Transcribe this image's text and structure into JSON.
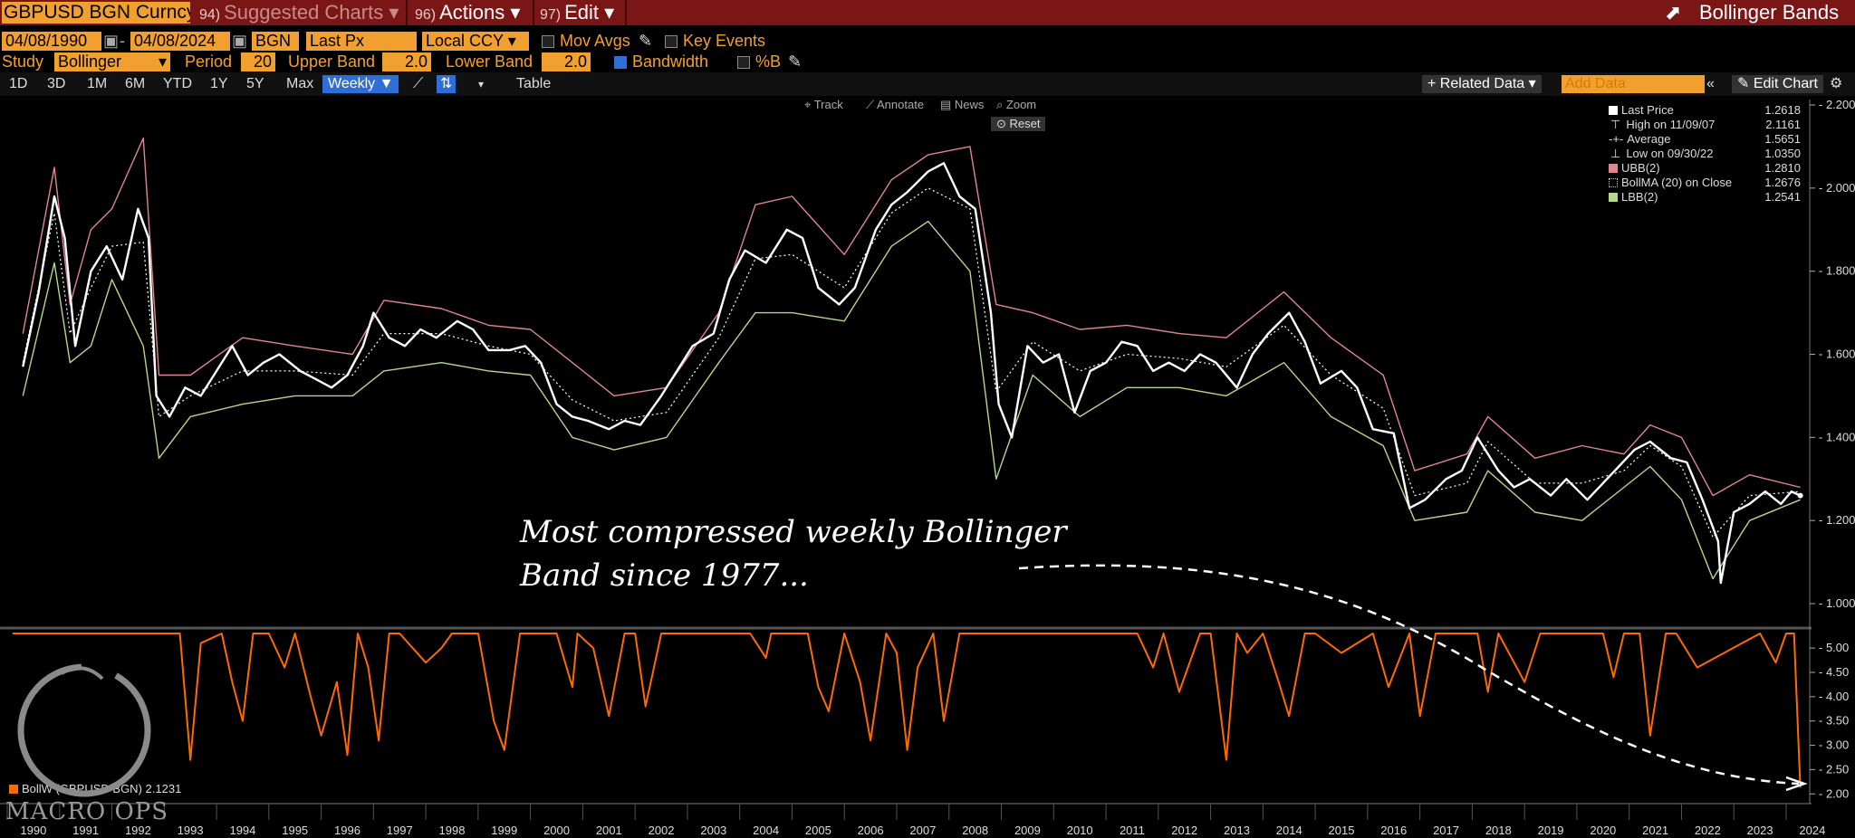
{
  "toolbar": {
    "ticker": "GBPUSD BGN Curncy",
    "suggested_num": "94)",
    "suggested": "Suggested Charts",
    "actions_num": "96)",
    "actions": "Actions",
    "edit_num": "97)",
    "edit": "Edit",
    "study_title": "Bollinger Bands"
  },
  "settings": {
    "start_date": "04/08/1990",
    "end_date": "04/08/2024",
    "source": "BGN",
    "field": "Last Px",
    "currency": "Local CCY",
    "mov_avgs": "Mov Avgs",
    "key_events": "Key Events",
    "study_label": "Study",
    "study": "Bollinger",
    "period_label": "Period",
    "period": "20",
    "upper_label": "Upper Band",
    "upper": "2.0",
    "lower_label": "Lower Band",
    "lower": "2.0",
    "bandwidth": "Bandwidth",
    "pctb": "%B"
  },
  "ranges": [
    "1D",
    "3D",
    "1M",
    "6M",
    "YTD",
    "1Y",
    "5Y",
    "Max"
  ],
  "frequency": "Weekly ▼",
  "table": "Table",
  "right_tools": {
    "related": "+ Related Data ▾",
    "add_data": "Add Data",
    "edit_chart": "Edit Chart"
  },
  "chart_tools": {
    "track": "Track",
    "annotate": "Annotate",
    "news": "News",
    "zoom": "Zoom",
    "reset": "Reset"
  },
  "legend": [
    {
      "label": "Last Price",
      "value": "1.2618",
      "color": "#ffffff"
    },
    {
      "label": "High on 11/09/07",
      "value": "2.1161",
      "color": ""
    },
    {
      "label": "Average",
      "value": "1.5651",
      "color": ""
    },
    {
      "label": "Low on 09/30/22",
      "value": "1.0350",
      "color": ""
    },
    {
      "label": "UBB(2)",
      "value": "1.2810",
      "color": "#e0868f"
    },
    {
      "label": "BollMA (20)  on Close",
      "value": "1.2676",
      "color": ""
    },
    {
      "label": "LBB(2)",
      "value": "1.2541",
      "color": "#b7d88a"
    }
  ],
  "lower_legend": {
    "label": "BollW (GBPUSD BGN)",
    "value": "2.1231"
  },
  "annotation": {
    "line1": "Most compressed weekly Bollinger",
    "line2": "Band since 1977..."
  },
  "watermark": "MACRO OPS",
  "chart_data": [
    {
      "type": "line",
      "series": [
        {
          "name": "Last Price",
          "color": "#ffffff",
          "x": [
            1990.3,
            1990.6,
            1990.9,
            1991.1,
            1991.3,
            1991.6,
            1991.9,
            1992.2,
            1992.5,
            1992.7,
            1992.85,
            1993.1,
            1993.4,
            1993.7,
            1994.0,
            1994.3,
            1994.6,
            1994.9,
            1995.2,
            1995.6,
            1995.9,
            1996.2,
            1996.5,
            1996.8,
            1997.0,
            1997.3,
            1997.6,
            1997.9,
            1998.2,
            1998.6,
            1998.9,
            1999.2,
            1999.6,
            1999.9,
            2000.2,
            2000.5,
            2000.8,
            2001.1,
            2001.5,
            2001.8,
            2002.1,
            2002.5,
            2002.8,
            2003.1,
            2003.5,
            2003.8,
            2004.1,
            2004.5,
            2004.9,
            2005.2,
            2005.5,
            2005.9,
            2006.2,
            2006.6,
            2006.9,
            2007.2,
            2007.6,
            2007.9,
            2008.2,
            2008.5,
            2008.8,
            2008.95,
            2009.2,
            2009.5,
            2009.8,
            2010.1,
            2010.4,
            2010.7,
            2011.0,
            2011.3,
            2011.6,
            2011.9,
            2012.2,
            2012.5,
            2012.8,
            2013.1,
            2013.5,
            2013.8,
            2014.1,
            2014.5,
            2014.8,
            2015.1,
            2015.5,
            2015.8,
            2016.1,
            2016.5,
            2016.8,
            2017.1,
            2017.5,
            2017.8,
            2018.1,
            2018.5,
            2018.8,
            2019.1,
            2019.5,
            2019.8,
            2020.2,
            2020.5,
            2020.8,
            2021.1,
            2021.4,
            2021.8,
            2022.1,
            2022.4,
            2022.7,
            2022.75,
            2023.0,
            2023.3,
            2023.6,
            2023.9,
            2024.1,
            2024.27
          ],
          "y": [
            1.57,
            1.75,
            1.98,
            1.88,
            1.62,
            1.8,
            1.86,
            1.78,
            1.95,
            1.88,
            1.5,
            1.45,
            1.52,
            1.5,
            1.56,
            1.62,
            1.55,
            1.58,
            1.6,
            1.56,
            1.54,
            1.52,
            1.55,
            1.62,
            1.7,
            1.64,
            1.62,
            1.66,
            1.64,
            1.68,
            1.66,
            1.61,
            1.61,
            1.62,
            1.58,
            1.48,
            1.45,
            1.44,
            1.42,
            1.44,
            1.43,
            1.5,
            1.56,
            1.62,
            1.65,
            1.78,
            1.85,
            1.82,
            1.9,
            1.88,
            1.76,
            1.72,
            1.76,
            1.9,
            1.96,
            1.99,
            2.04,
            2.06,
            1.98,
            1.95,
            1.7,
            1.48,
            1.4,
            1.62,
            1.58,
            1.6,
            1.46,
            1.56,
            1.58,
            1.63,
            1.62,
            1.56,
            1.58,
            1.56,
            1.6,
            1.58,
            1.52,
            1.6,
            1.65,
            1.7,
            1.63,
            1.53,
            1.56,
            1.52,
            1.42,
            1.41,
            1.23,
            1.25,
            1.3,
            1.32,
            1.4,
            1.32,
            1.28,
            1.3,
            1.26,
            1.3,
            1.25,
            1.29,
            1.33,
            1.37,
            1.39,
            1.35,
            1.34,
            1.25,
            1.15,
            1.05,
            1.22,
            1.24,
            1.27,
            1.24,
            1.27,
            1.26
          ]
        },
        {
          "name": "UBB(2)",
          "color": "#e0868f",
          "x": [
            1990.3,
            1990.9,
            1991.2,
            1991.6,
            1992.0,
            1992.6,
            1992.9,
            1993.5,
            1994.5,
            1995.5,
            1996.6,
            1997.2,
            1998.3,
            1999.2,
            2000.0,
            2000.8,
            2001.6,
            2002.6,
            2003.6,
            2004.3,
            2005.0,
            2006.0,
            2006.9,
            2007.6,
            2008.4,
            2008.9,
            2009.6,
            2010.5,
            2011.4,
            2012.4,
            2013.3,
            2014.4,
            2015.3,
            2016.3,
            2016.9,
            2017.9,
            2018.3,
            2019.2,
            2020.1,
            2020.9,
            2021.4,
            2022.0,
            2022.6,
            2023.3,
            2024.27
          ],
          "y": [
            1.65,
            2.05,
            1.72,
            1.9,
            1.95,
            2.12,
            1.55,
            1.55,
            1.64,
            1.62,
            1.6,
            1.73,
            1.71,
            1.67,
            1.66,
            1.58,
            1.5,
            1.52,
            1.7,
            1.96,
            1.98,
            1.84,
            2.02,
            2.08,
            2.1,
            1.72,
            1.7,
            1.66,
            1.67,
            1.65,
            1.64,
            1.75,
            1.64,
            1.55,
            1.32,
            1.36,
            1.45,
            1.35,
            1.38,
            1.36,
            1.43,
            1.4,
            1.26,
            1.31,
            1.28
          ]
        },
        {
          "name": "LBB(2)",
          "color": "#b7d88a",
          "x": [
            1990.3,
            1990.9,
            1991.2,
            1991.6,
            1992.0,
            1992.6,
            1992.9,
            1993.5,
            1994.5,
            1995.5,
            1996.6,
            1997.2,
            1998.3,
            1999.2,
            2000.0,
            2000.8,
            2001.6,
            2002.6,
            2003.6,
            2004.3,
            2005.0,
            2006.0,
            2006.9,
            2007.6,
            2008.4,
            2008.9,
            2009.6,
            2010.5,
            2011.4,
            2012.4,
            2013.3,
            2014.4,
            2015.3,
            2016.3,
            2016.9,
            2017.9,
            2018.3,
            2019.2,
            2020.1,
            2020.9,
            2021.4,
            2022.0,
            2022.6,
            2023.3,
            2024.27
          ],
          "y": [
            1.5,
            1.82,
            1.58,
            1.62,
            1.78,
            1.62,
            1.35,
            1.45,
            1.48,
            1.5,
            1.5,
            1.56,
            1.58,
            1.56,
            1.55,
            1.4,
            1.37,
            1.4,
            1.58,
            1.7,
            1.7,
            1.68,
            1.86,
            1.92,
            1.8,
            1.3,
            1.55,
            1.45,
            1.52,
            1.52,
            1.5,
            1.58,
            1.45,
            1.38,
            1.2,
            1.22,
            1.32,
            1.22,
            1.2,
            1.28,
            1.33,
            1.25,
            1.06,
            1.2,
            1.25
          ]
        },
        {
          "name": "BollMA (20)",
          "color": "#ffffff",
          "x": [
            1990.3,
            1990.9,
            1991.2,
            1991.6,
            1992.0,
            1992.6,
            1992.9,
            1993.5,
            1994.5,
            1995.5,
            1996.6,
            1997.2,
            1998.3,
            1999.2,
            2000.0,
            2000.8,
            2001.6,
            2002.6,
            2003.6,
            2004.3,
            2005.0,
            2006.0,
            2006.9,
            2007.6,
            2008.4,
            2008.9,
            2009.6,
            2010.5,
            2011.4,
            2012.4,
            2013.3,
            2014.4,
            2015.3,
            2016.3,
            2016.9,
            2017.9,
            2018.3,
            2019.2,
            2020.1,
            2020.9,
            2021.4,
            2022.0,
            2022.6,
            2023.3,
            2024.27
          ],
          "y": [
            1.58,
            1.94,
            1.65,
            1.76,
            1.86,
            1.87,
            1.45,
            1.5,
            1.56,
            1.56,
            1.55,
            1.65,
            1.65,
            1.62,
            1.6,
            1.49,
            1.44,
            1.46,
            1.64,
            1.83,
            1.84,
            1.76,
            1.94,
            2.0,
            1.95,
            1.51,
            1.63,
            1.56,
            1.6,
            1.59,
            1.57,
            1.67,
            1.55,
            1.47,
            1.26,
            1.29,
            1.39,
            1.29,
            1.29,
            1.32,
            1.38,
            1.33,
            1.16,
            1.26,
            1.27
          ]
        }
      ],
      "ylim": [
        0.95,
        2.2
      ],
      "yticks": [
        1.0,
        1.2,
        1.4,
        1.6,
        1.8,
        2.0,
        2.2
      ],
      "xlim": [
        1990.0,
        2024.45
      ],
      "legend_position": "top-right"
    },
    {
      "type": "line",
      "series": [
        {
          "name": "BollW (GBPUSD BGN)",
          "color": "#ff6a00",
          "x": [
            1990.1,
            1991.0,
            1991.5,
            1991.6,
            1993.3,
            1993.5,
            1993.7,
            1994.1,
            1994.3,
            1994.5,
            1994.7,
            1995.0,
            1995.3,
            1995.5,
            1995.8,
            1996.0,
            1996.3,
            1996.5,
            1996.7,
            1996.9,
            1997.1,
            1997.3,
            1997.5,
            1998.0,
            1998.3,
            1998.5,
            1999.0,
            1999.3,
            1999.5,
            1999.8,
            2000.5,
            2000.8,
            2000.9,
            2001.2,
            2001.5,
            2001.8,
            2002.0,
            2002.2,
            2002.5,
            2002.7,
            2004.2,
            2004.5,
            2004.6,
            2005.3,
            2005.5,
            2005.7,
            2006.0,
            2006.3,
            2006.5,
            2006.8,
            2007.0,
            2007.2,
            2007.4,
            2007.7,
            2007.9,
            2008.2,
            2011.6,
            2011.9,
            2012.1,
            2012.4,
            2012.8,
            2013.0,
            2013.3,
            2013.5,
            2013.7,
            2014.0,
            2014.3,
            2014.5,
            2014.8,
            2015.0,
            2015.5,
            2016.1,
            2016.4,
            2016.8,
            2017.0,
            2017.3,
            2018.1,
            2018.3,
            2018.5,
            2019.0,
            2019.3,
            2019.5,
            2020.5,
            2020.7,
            2020.9,
            2021.2,
            2021.4,
            2021.7,
            2021.9,
            2022.3,
            2023.5,
            2023.8,
            2024.0,
            2024.15,
            2024.27
          ],
          "y": [
            5.3,
            5.3,
            5.3,
            5.3,
            5.3,
            2.7,
            5.1,
            5.3,
            4.3,
            3.5,
            5.3,
            5.3,
            4.6,
            5.3,
            4.0,
            3.2,
            4.3,
            2.8,
            5.3,
            4.6,
            3.1,
            5.3,
            5.3,
            4.7,
            5.0,
            5.3,
            5.3,
            3.5,
            2.9,
            5.3,
            5.3,
            4.2,
            5.3,
            5.0,
            3.6,
            5.3,
            5.3,
            3.8,
            5.3,
            5.3,
            5.3,
            4.8,
            5.3,
            5.3,
            4.2,
            3.7,
            5.3,
            4.3,
            3.1,
            5.3,
            4.9,
            2.9,
            4.6,
            5.3,
            3.5,
            5.3,
            5.3,
            4.6,
            5.3,
            4.1,
            5.3,
            5.3,
            2.7,
            5.3,
            4.9,
            5.3,
            4.3,
            3.6,
            5.3,
            5.3,
            4.9,
            5.3,
            4.2,
            5.3,
            3.6,
            5.3,
            5.3,
            4.1,
            5.3,
            4.3,
            5.3,
            5.3,
            5.3,
            4.4,
            5.3,
            5.3,
            3.2,
            5.3,
            5.3,
            4.6,
            5.3,
            4.7,
            5.3,
            5.3,
            2.13
          ]
        }
      ],
      "ylim": [
        1.8,
        5.3
      ],
      "yticks": [
        2.0,
        2.5,
        3.0,
        3.5,
        4.0,
        4.5,
        5.0
      ],
      "xlim": [
        1990.0,
        2024.45
      ]
    }
  ],
  "x_axis_years": [
    "1990",
    "1991",
    "1992",
    "1993",
    "1994",
    "1995",
    "1996",
    "1997",
    "1998",
    "1999",
    "2000",
    "2001",
    "2002",
    "2003",
    "2004",
    "2005",
    "2006",
    "2007",
    "2008",
    "2009",
    "2010",
    "2011",
    "2012",
    "2013",
    "2014",
    "2015",
    "2016",
    "2017",
    "2018",
    "2019",
    "2020",
    "2021",
    "2022",
    "2023",
    "2024"
  ]
}
